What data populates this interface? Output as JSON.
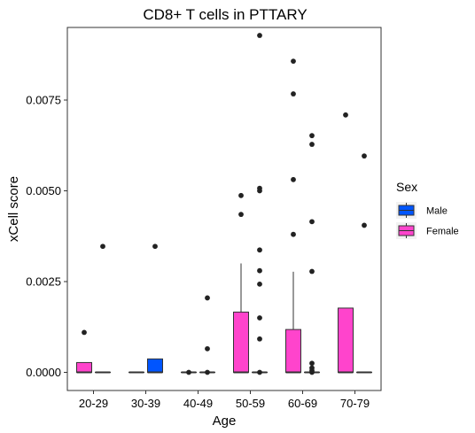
{
  "chart_data": {
    "type": "box",
    "title": "CD8+ T cells in PTTARY",
    "xlabel": "Age",
    "ylabel": "xCell score",
    "ylim": [
      -0.0005,
      0.0095
    ],
    "yticks": [
      0,
      0.0025,
      0.005,
      0.0075
    ],
    "ytick_labels": [
      "0.0000",
      "0.0025",
      "0.0050",
      "0.0075"
    ],
    "grid": false,
    "legend": {
      "title": "Sex",
      "placement": "right"
    },
    "categories": [
      "20-29",
      "30-39",
      "40-49",
      "50-59",
      "60-69",
      "70-79"
    ],
    "series": [
      {
        "name": "Male",
        "color": "#0055ff",
        "boxes": [
          {
            "q1": 0,
            "median": 0,
            "q3": 0,
            "whisker_low": 0,
            "whisker_high": 0,
            "outliers": [
              0.00347
            ]
          },
          {
            "q1": 0,
            "median": 0,
            "q3": 0.00037,
            "whisker_low": 0,
            "whisker_high": 0.00037,
            "outliers": [
              0.00347
            ]
          },
          {
            "q1": 0,
            "median": 0,
            "q3": 0,
            "whisker_low": 0,
            "whisker_high": 0,
            "outliers": [
              0.00205,
              0.00065,
              0
            ]
          },
          {
            "q1": 0,
            "median": 0,
            "q3": 0,
            "whisker_low": 0,
            "whisker_high": 0,
            "outliers": [
              0.00928,
              0.00507,
              0.005,
              0.00337,
              0.0028,
              0.00243,
              0.0015,
              0.00092,
              0
            ]
          },
          {
            "q1": 0,
            "median": 0,
            "q3": 0,
            "whisker_low": 0,
            "whisker_high": 0,
            "outliers": [
              0.00652,
              0.00628,
              0.00415,
              0.00278,
              0.00025,
              0.00012,
              5e-05,
              0
            ]
          },
          {
            "q1": 0,
            "median": 0,
            "q3": 0,
            "whisker_low": 0,
            "whisker_high": 0,
            "outliers": [
              0.00596,
              0.00405
            ]
          }
        ]
      },
      {
        "name": "Female",
        "color": "#ff44cc",
        "boxes": [
          {
            "q1": 0,
            "median": 0,
            "q3": 0.00027,
            "whisker_low": 0,
            "whisker_high": 0.00027,
            "outliers": [
              0.0011
            ]
          },
          {
            "q1": 0,
            "median": 0,
            "q3": 0,
            "whisker_low": 0,
            "whisker_high": 0,
            "outliers": []
          },
          {
            "q1": 0,
            "median": 0,
            "q3": 0,
            "whisker_low": 0,
            "whisker_high": 0,
            "outliers": [
              0
            ]
          },
          {
            "q1": 0,
            "median": 0,
            "q3": 0.00166,
            "whisker_low": 0,
            "whisker_high": 0.003,
            "outliers": [
              0.00487,
              0.00435
            ]
          },
          {
            "q1": 0,
            "median": 0,
            "q3": 0.00118,
            "whisker_low": 0,
            "whisker_high": 0.00277,
            "outliers": [
              0.00857,
              0.00767,
              0.00531,
              0.0038
            ]
          },
          {
            "q1": 0,
            "median": 0,
            "q3": 0.00177,
            "whisker_low": 0,
            "whisker_high": 0.00177,
            "outliers": [
              0.00709
            ]
          }
        ]
      }
    ]
  }
}
